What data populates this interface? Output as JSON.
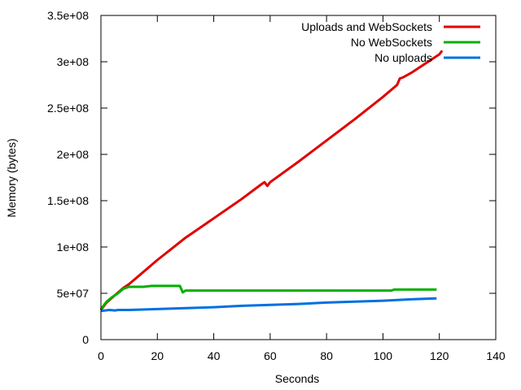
{
  "chart_data": {
    "type": "line",
    "title": "",
    "xlabel": "Seconds",
    "ylabel": "Memory (bytes)",
    "xlim": [
      0,
      140
    ],
    "ylim": [
      0,
      350000000
    ],
    "xticks": [
      0,
      20,
      40,
      60,
      80,
      100,
      120,
      140
    ],
    "xtick_labels": [
      "0",
      "20",
      "40",
      "60",
      "80",
      "100",
      "120",
      "140"
    ],
    "yticks": [
      0,
      50000000,
      100000000,
      150000000,
      200000000,
      250000000,
      300000000,
      350000000
    ],
    "ytick_labels": [
      "0",
      "5e+07",
      "1e+08",
      "1.5e+08",
      "2e+08",
      "2.5e+08",
      "3e+08",
      "3.5e+08"
    ],
    "grid": false,
    "legend_position": "top-right",
    "series": [
      {
        "name": "Uploads and WebSockets",
        "color": "#e00000",
        "x": [
          0,
          2,
          5,
          8,
          10,
          15,
          20,
          25,
          30,
          40,
          50,
          57,
          58,
          59,
          60,
          70,
          80,
          90,
          100,
          105,
          106,
          107,
          110,
          120,
          121
        ],
        "y": [
          32000000,
          40000000,
          48000000,
          56000000,
          60000000,
          73000000,
          86000000,
          98000000,
          110000000,
          131000000,
          152000000,
          168000000,
          170000000,
          166000000,
          170000000,
          192000000,
          215000000,
          238000000,
          262000000,
          275000000,
          282000000,
          283000000,
          288000000,
          308000000,
          312000000
        ]
      },
      {
        "name": "No WebSockets",
        "color": "#00b000",
        "x": [
          0,
          2,
          4,
          6,
          8,
          10,
          15,
          18,
          28,
          29,
          30,
          40,
          60,
          80,
          100,
          103,
          104,
          119
        ],
        "y": [
          33000000,
          41000000,
          46000000,
          50000000,
          55000000,
          57000000,
          57000000,
          58000000,
          58000000,
          51000000,
          53000000,
          53000000,
          53000000,
          53000000,
          53000000,
          53000000,
          54000000,
          54000000
        ]
      },
      {
        "name": "No uploads",
        "color": "#0070e0",
        "x": [
          0,
          3,
          5,
          6,
          10,
          20,
          30,
          40,
          50,
          60,
          70,
          80,
          90,
          100,
          110,
          119
        ],
        "y": [
          31000000,
          32000000,
          31500000,
          32000000,
          32000000,
          33000000,
          34000000,
          35000000,
          36500000,
          37500000,
          38500000,
          40000000,
          41000000,
          42000000,
          43500000,
          44500000
        ]
      }
    ]
  }
}
